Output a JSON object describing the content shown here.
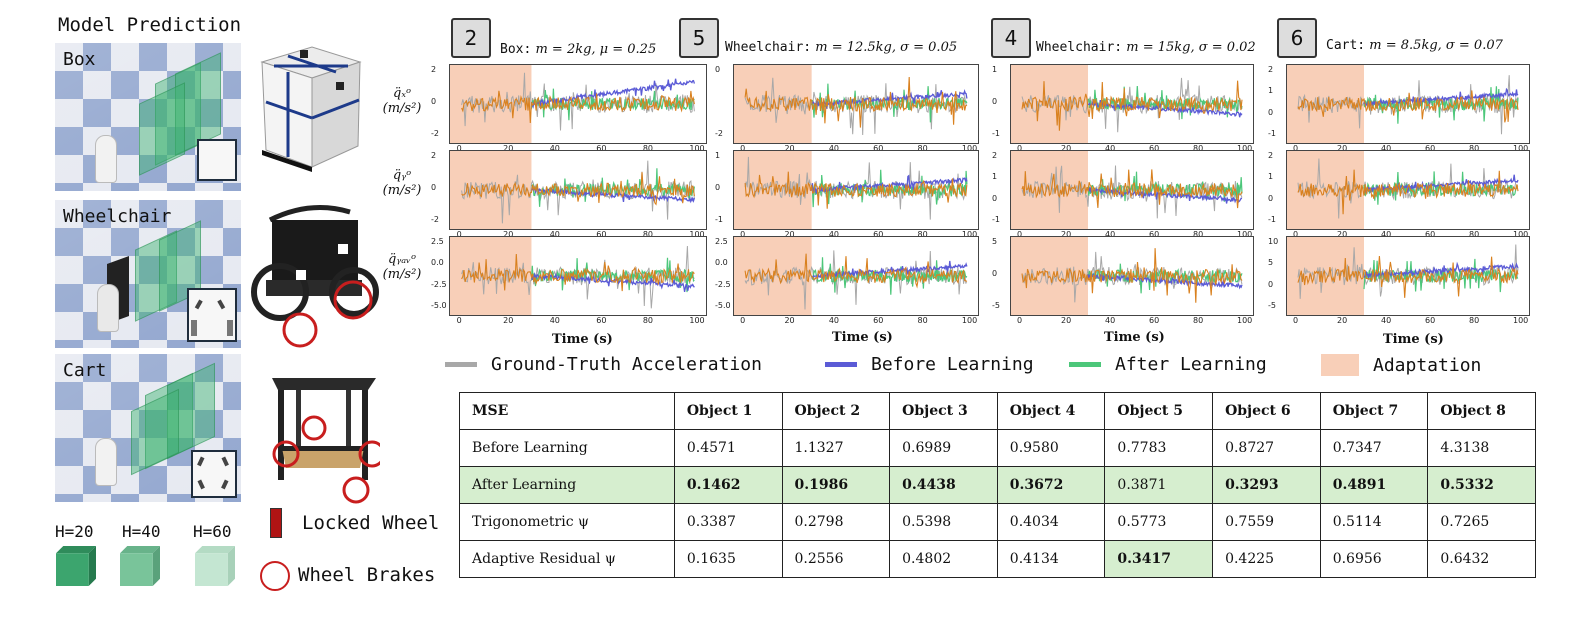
{
  "left": {
    "title": "Model Prediction",
    "scenes": [
      {
        "label": "Box"
      },
      {
        "label": "Wheelchair"
      },
      {
        "label": "Cart"
      }
    ],
    "cubes": [
      {
        "label": "H=20",
        "color": "#3ca56e"
      },
      {
        "label": "H=40",
        "color": "#79c49a"
      },
      {
        "label": "H=60",
        "color": "#c4e6d2"
      }
    ],
    "legend": {
      "locked_wheel": "Locked Wheel",
      "wheel_brakes": "Wheel Brakes"
    }
  },
  "panels": [
    {
      "tag": "2",
      "name": "Box:",
      "params": "m = 2kg, μ = 0.25"
    },
    {
      "tag": "5",
      "name": "Wheelchair:",
      "params": "m = 12.5kg, σ = 0.05"
    },
    {
      "tag": "4",
      "name": "Wheelchair:",
      "params": "m = 15kg, σ = 0.02"
    },
    {
      "tag": "6",
      "name": "Cart:",
      "params": "m = 8.5kg, σ = 0.07"
    }
  ],
  "row_labels": [
    {
      "sym": "q̈ₓᵒ",
      "unit": "(m/s²)"
    },
    {
      "sym": "q̈ᵧᵒ",
      "unit": "(m/s²)"
    },
    {
      "sym": "q̈ᵧₐᵥᵒ",
      "unit": "(m/s²)"
    }
  ],
  "xlabel": "Time (s)",
  "x_ticks": [
    "0",
    "20",
    "40",
    "60",
    "80",
    "100"
  ],
  "y_ticks": [
    [
      [
        "2",
        "0",
        "-2"
      ],
      [
        "0",
        "-2"
      ],
      [
        "1",
        "0",
        "-1"
      ],
      [
        "2",
        "1",
        "0",
        "-1"
      ]
    ],
    [
      [
        "2",
        "0",
        "-2"
      ],
      [
        "1",
        "0",
        "-1"
      ],
      [
        "2",
        "1",
        "0",
        "-1"
      ],
      [
        "2",
        "1",
        "0",
        "-1"
      ]
    ],
    [
      [
        "2.5",
        "0.0",
        "-2.5",
        "-5.0"
      ],
      [
        "2.5",
        "0.0",
        "-2.5",
        "-5.0"
      ],
      [
        "5",
        "0",
        "-5"
      ],
      [
        "10",
        "5",
        "0",
        "-5"
      ]
    ]
  ],
  "legend": {
    "ground_truth": "Ground-Truth Acceleration",
    "before": "Before Learning",
    "after": "After Learning",
    "adaptation": "Adaptation",
    "colors": {
      "ground_truth": "#a8a8a8",
      "before": "#5b5bd6",
      "after": "#4cc77a",
      "adaptation": "#f8cfb8",
      "adapt_line": "#d9811f"
    }
  },
  "table": {
    "header": [
      "MSE",
      "Object 1",
      "Object 2",
      "Object 3",
      "Object 4",
      "Object 5",
      "Object 6",
      "Object 7",
      "Object 8"
    ],
    "rows": [
      {
        "label": "Before Learning",
        "values": [
          "0.4571",
          "1.1327",
          "0.6989",
          "0.9580",
          "0.7783",
          "0.8727",
          "0.7347",
          "4.3138"
        ],
        "highlight": [
          false,
          false,
          false,
          false,
          false,
          false,
          false,
          false
        ]
      },
      {
        "label": "After Learning",
        "values": [
          "0.1462",
          "0.1986",
          "0.4438",
          "0.3672",
          "0.3871",
          "0.3293",
          "0.4891",
          "0.5332"
        ],
        "highlight": [
          true,
          true,
          true,
          true,
          false,
          true,
          true,
          true
        ],
        "row_bg": true
      },
      {
        "label": "Trigonometric ψ",
        "values": [
          "0.3387",
          "0.2798",
          "0.5398",
          "0.4034",
          "0.5773",
          "0.7559",
          "0.5114",
          "0.7265"
        ],
        "highlight": [
          false,
          false,
          false,
          false,
          false,
          false,
          false,
          false
        ]
      },
      {
        "label": "Adaptive Residual ψ",
        "values": [
          "0.1635",
          "0.2556",
          "0.4802",
          "0.4134",
          "0.3417",
          "0.4225",
          "0.6956",
          "0.6432"
        ],
        "highlight": [
          false,
          false,
          false,
          false,
          true,
          false,
          false,
          false
        ]
      }
    ]
  }
}
